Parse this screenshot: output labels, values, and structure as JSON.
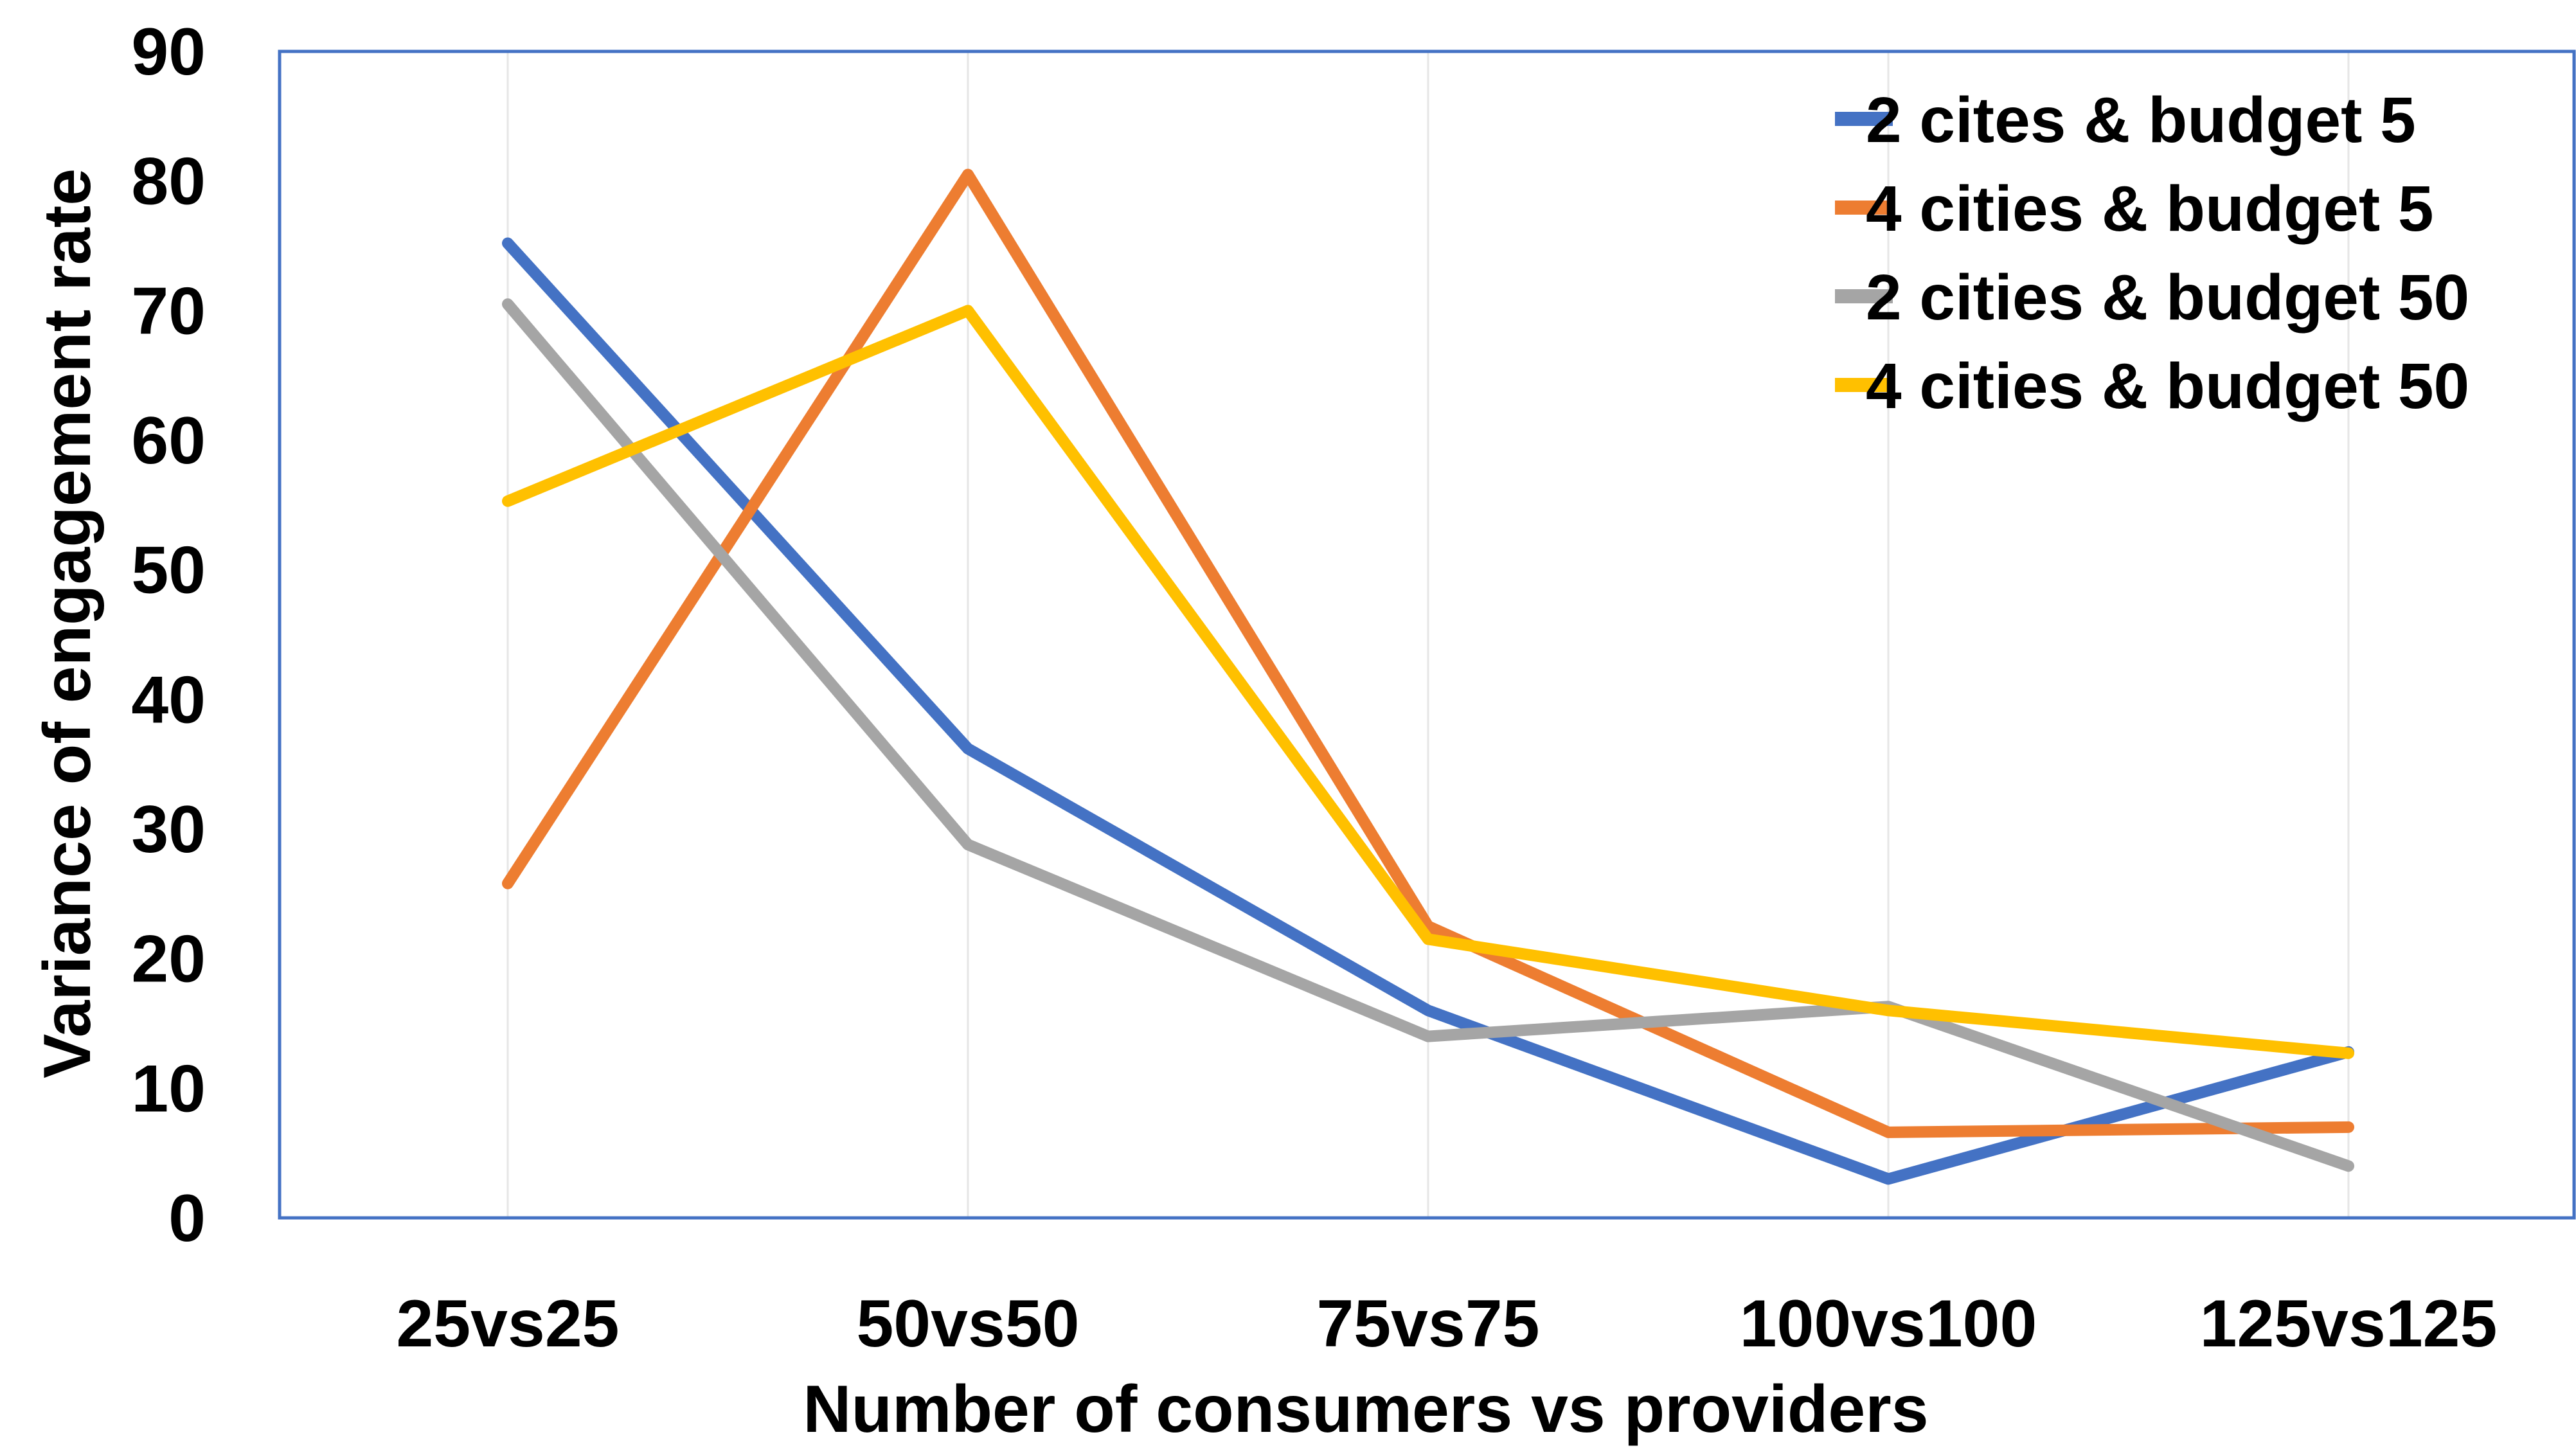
{
  "chart_data": {
    "type": "line",
    "title": "",
    "xlabel": "Number of consumers vs providers",
    "ylabel": "Variance of engagement rate",
    "categories": [
      "25vs25",
      "50vs50",
      "75vs75",
      "100vs100",
      "125vs125"
    ],
    "ylim": [
      0,
      90
    ],
    "yticks": [
      0,
      10,
      20,
      30,
      40,
      50,
      60,
      70,
      80,
      90
    ],
    "grid": "vertical",
    "legend_position": "top-right",
    "series": [
      {
        "name": "2 cites & budget 5",
        "color": "#4472C4",
        "values": [
          75.2,
          36.2,
          16.0,
          3.0,
          12.8
        ]
      },
      {
        "name": "4 cities & budget 5",
        "color": "#ED7D31",
        "values": [
          25.8,
          80.5,
          22.5,
          6.6,
          7.0
        ]
      },
      {
        "name": "2 cities & budget 50",
        "color": "#A5A5A5",
        "values": [
          70.5,
          28.8,
          14.0,
          16.3,
          4.0
        ]
      },
      {
        "name": "4 cities & budget 50",
        "color": "#FFC000",
        "values": [
          55.3,
          70.0,
          21.5,
          16.0,
          12.7
        ]
      }
    ],
    "plot_border_color": "#4472C4",
    "grid_color": "#E6E6E6"
  }
}
